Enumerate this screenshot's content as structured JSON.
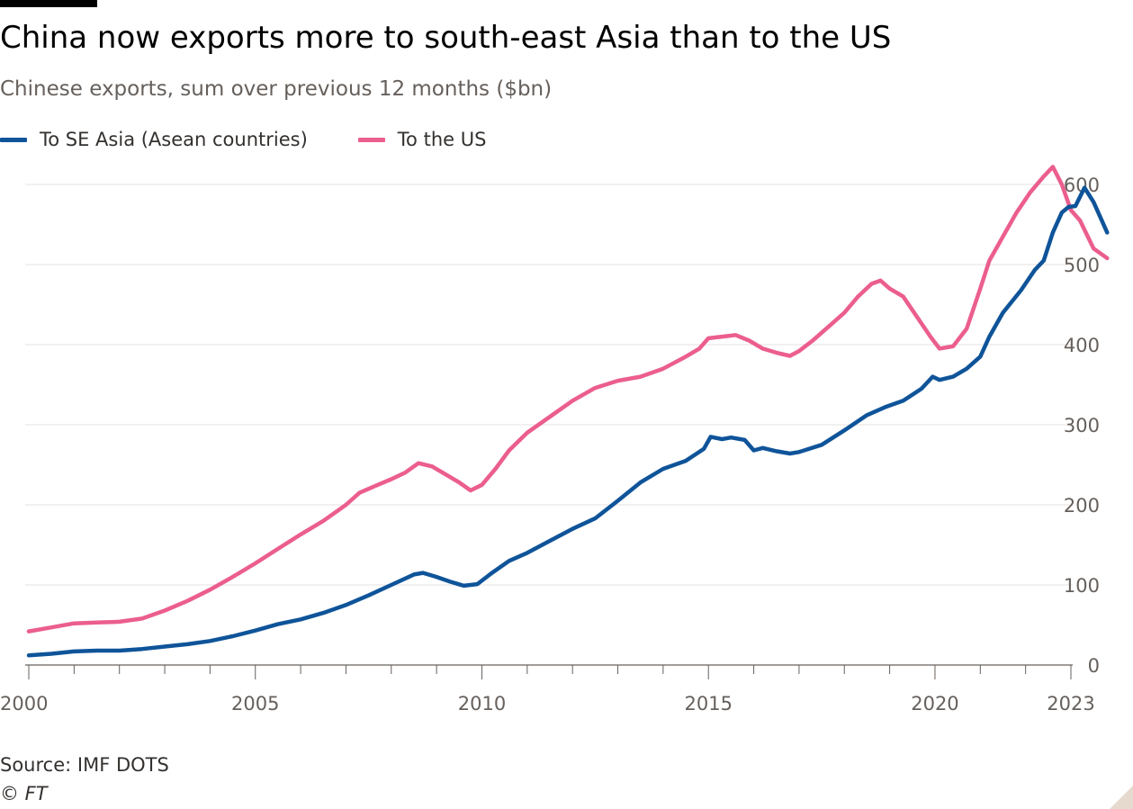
{
  "title": "China now exports more to south-east Asia than to the US",
  "subtitle": "Chinese exports, sum over previous 12 months ($bn)",
  "source": "Source: IMF DOTS",
  "copyright": "© FT",
  "colors": {
    "asean": "#0f5499",
    "us": "#eb5e8d",
    "grid": "#e6e3e0",
    "axis": "#66605c"
  },
  "chart_data": {
    "type": "line",
    "xlim": [
      2000,
      2023
    ],
    "ylim": [
      0,
      600
    ],
    "y_ticks": [
      0,
      100,
      200,
      300,
      400,
      500,
      600
    ],
    "y_tick_labels": [
      "0",
      "100",
      "200",
      "300",
      "400",
      "500",
      "600"
    ],
    "x_ticks": [
      2000,
      2005,
      2010,
      2015,
      2020,
      2023
    ],
    "x_tick_labels": [
      "2000",
      "2005",
      "2010",
      "2015",
      "2020",
      "2023"
    ],
    "y_axis_side": "right",
    "grid": true,
    "legend_position": "top-left",
    "series": [
      {
        "name": "To SE Asia (Asean countries)",
        "color": "#0f5499",
        "points": [
          [
            2000.0,
            12
          ],
          [
            2000.5,
            14
          ],
          [
            2001.0,
            17
          ],
          [
            2001.5,
            18
          ],
          [
            2002.0,
            18
          ],
          [
            2002.5,
            20
          ],
          [
            2003.0,
            23
          ],
          [
            2003.5,
            26
          ],
          [
            2004.0,
            30
          ],
          [
            2004.5,
            36
          ],
          [
            2005.0,
            43
          ],
          [
            2005.5,
            51
          ],
          [
            2006.0,
            57
          ],
          [
            2006.5,
            65
          ],
          [
            2007.0,
            75
          ],
          [
            2007.5,
            87
          ],
          [
            2008.0,
            100
          ],
          [
            2008.5,
            113
          ],
          [
            2008.7,
            115
          ],
          [
            2009.0,
            110
          ],
          [
            2009.3,
            104
          ],
          [
            2009.6,
            99
          ],
          [
            2009.9,
            101
          ],
          [
            2010.2,
            114
          ],
          [
            2010.6,
            130
          ],
          [
            2011.0,
            140
          ],
          [
            2011.5,
            155
          ],
          [
            2012.0,
            170
          ],
          [
            2012.5,
            183
          ],
          [
            2013.0,
            205
          ],
          [
            2013.5,
            228
          ],
          [
            2014.0,
            245
          ],
          [
            2014.5,
            255
          ],
          [
            2014.9,
            270
          ],
          [
            2015.05,
            285
          ],
          [
            2015.3,
            282
          ],
          [
            2015.5,
            284
          ],
          [
            2015.8,
            281
          ],
          [
            2016.0,
            268
          ],
          [
            2016.2,
            271
          ],
          [
            2016.5,
            267
          ],
          [
            2016.8,
            264
          ],
          [
            2017.0,
            266
          ],
          [
            2017.5,
            275
          ],
          [
            2018.0,
            293
          ],
          [
            2018.5,
            312
          ],
          [
            2018.9,
            322
          ],
          [
            2019.3,
            330
          ],
          [
            2019.7,
            345
          ],
          [
            2019.95,
            360
          ],
          [
            2020.1,
            356
          ],
          [
            2020.4,
            360
          ],
          [
            2020.7,
            370
          ],
          [
            2021.0,
            385
          ],
          [
            2021.2,
            410
          ],
          [
            2021.5,
            440
          ],
          [
            2021.9,
            468
          ],
          [
            2022.2,
            493
          ],
          [
            2022.4,
            505
          ],
          [
            2022.6,
            540
          ],
          [
            2022.8,
            565
          ],
          [
            2022.95,
            572
          ],
          [
            2023.1,
            573
          ],
          [
            2023.3,
            596
          ],
          [
            2023.5,
            578
          ],
          [
            2023.8,
            540
          ]
        ]
      },
      {
        "name": "To the US",
        "color": "#eb5e8d",
        "points": [
          [
            2000.0,
            42
          ],
          [
            2000.5,
            47
          ],
          [
            2001.0,
            52
          ],
          [
            2001.5,
            53
          ],
          [
            2002.0,
            54
          ],
          [
            2002.5,
            58
          ],
          [
            2003.0,
            68
          ],
          [
            2003.5,
            80
          ],
          [
            2004.0,
            94
          ],
          [
            2004.5,
            110
          ],
          [
            2005.0,
            127
          ],
          [
            2005.5,
            145
          ],
          [
            2006.0,
            163
          ],
          [
            2006.5,
            180
          ],
          [
            2007.0,
            200
          ],
          [
            2007.3,
            215
          ],
          [
            2007.7,
            225
          ],
          [
            2008.0,
            232
          ],
          [
            2008.3,
            240
          ],
          [
            2008.6,
            252
          ],
          [
            2008.9,
            248
          ],
          [
            2009.2,
            238
          ],
          [
            2009.5,
            228
          ],
          [
            2009.75,
            218
          ],
          [
            2010.0,
            225
          ],
          [
            2010.3,
            245
          ],
          [
            2010.6,
            268
          ],
          [
            2011.0,
            290
          ],
          [
            2011.5,
            310
          ],
          [
            2012.0,
            330
          ],
          [
            2012.5,
            346
          ],
          [
            2013.0,
            355
          ],
          [
            2013.5,
            360
          ],
          [
            2014.0,
            370
          ],
          [
            2014.5,
            385
          ],
          [
            2014.8,
            395
          ],
          [
            2015.0,
            408
          ],
          [
            2015.3,
            410
          ],
          [
            2015.6,
            412
          ],
          [
            2015.9,
            405
          ],
          [
            2016.2,
            395
          ],
          [
            2016.5,
            390
          ],
          [
            2016.8,
            386
          ],
          [
            2017.0,
            392
          ],
          [
            2017.3,
            405
          ],
          [
            2017.7,
            425
          ],
          [
            2018.0,
            440
          ],
          [
            2018.3,
            460
          ],
          [
            2018.6,
            476
          ],
          [
            2018.8,
            480
          ],
          [
            2019.0,
            470
          ],
          [
            2019.3,
            460
          ],
          [
            2019.6,
            435
          ],
          [
            2019.9,
            410
          ],
          [
            2020.1,
            395
          ],
          [
            2020.4,
            398
          ],
          [
            2020.7,
            420
          ],
          [
            2021.0,
            470
          ],
          [
            2021.2,
            505
          ],
          [
            2021.5,
            535
          ],
          [
            2021.8,
            565
          ],
          [
            2022.1,
            590
          ],
          [
            2022.4,
            610
          ],
          [
            2022.6,
            622
          ],
          [
            2022.8,
            600
          ],
          [
            2023.0,
            568
          ],
          [
            2023.2,
            555
          ],
          [
            2023.5,
            520
          ],
          [
            2023.8,
            508
          ]
        ]
      }
    ]
  }
}
